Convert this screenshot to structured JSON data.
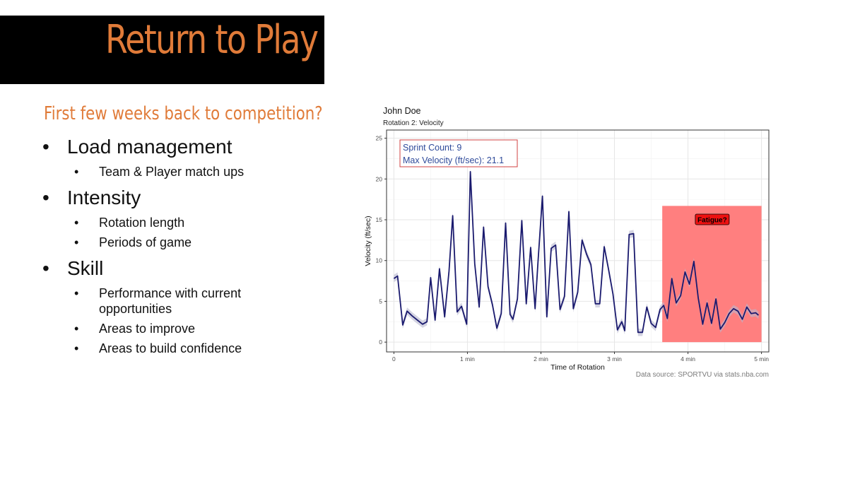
{
  "slide": {
    "title": "Return to Play",
    "title_color": "#e07b39",
    "subtitle": "First few weeks back to competition?",
    "bullets": [
      {
        "label": "Load management",
        "sub": [
          "Team & Player match ups"
        ]
      },
      {
        "label": "Intensity",
        "sub": [
          "Rotation length",
          "Periods of game"
        ]
      },
      {
        "label": "Skill",
        "sub": [
          "Performance with current opportunities",
          "Areas to improve",
          "Areas to build confidence"
        ]
      }
    ]
  },
  "chart_data": {
    "type": "line",
    "title": "John Doe",
    "subtitle": "Rotation 2: Velocity",
    "xlabel": "Time of Rotation",
    "ylabel": "Velocity (ft/sec)",
    "xlim": [
      -0.1,
      5.1
    ],
    "ylim": [
      -1.2,
      26
    ],
    "x_ticks": [
      {
        "value": 0,
        "label": "0"
      },
      {
        "value": 1,
        "label": "1 min"
      },
      {
        "value": 2,
        "label": "2 min"
      },
      {
        "value": 3,
        "label": "3 min"
      },
      {
        "value": 4,
        "label": "4 min"
      },
      {
        "value": 5,
        "label": "5 min"
      }
    ],
    "y_ticks": [
      0,
      5,
      10,
      15,
      20,
      25
    ],
    "grid": true,
    "line_color": "#1a1a6e",
    "ribbon_color": "#b8b8cf",
    "caption": "Data source: SPORTVU via stats.nba.com",
    "stats_box": {
      "lines": [
        "Sprint Count: 9",
        "Max Velocity (ft/sec): 21.1"
      ],
      "text_color": "#2e4a9a",
      "border_color": "#d04040"
    },
    "highlight": {
      "x0": 3.65,
      "x1": 5.0,
      "y0": 0,
      "y1": 16.7,
      "color": "#ff7f7f",
      "label": "Fatigue?",
      "label_x": 4.33,
      "label_y": 15.0,
      "label_fill": "#ee1111"
    },
    "series": [
      {
        "x": [
          0,
          0.05,
          0.12,
          0.18,
          0.25,
          0.32,
          0.39,
          0.45,
          0.5,
          0.56,
          0.62,
          0.69,
          0.75,
          0.8,
          0.86,
          0.92,
          0.99,
          1.04,
          1.1,
          1.16,
          1.22,
          1.28,
          1.34,
          1.4,
          1.46,
          1.52,
          1.58,
          1.62,
          1.68,
          1.74,
          1.8,
          1.86,
          1.92,
          1.96,
          2.02,
          2.08,
          2.14,
          2.2,
          2.26,
          2.32,
          2.38,
          2.44,
          2.5,
          2.56,
          2.62,
          2.68,
          2.74,
          2.8,
          2.86,
          2.92,
          2.98,
          3.04,
          3.1,
          3.14,
          3.2,
          3.26,
          3.32,
          3.38,
          3.44,
          3.5,
          3.56,
          3.62,
          3.67,
          3.72,
          3.78,
          3.84,
          3.9,
          3.96,
          4.02,
          4.08,
          4.14,
          4.2,
          4.26,
          4.32,
          4.38,
          4.44,
          4.5,
          4.56,
          4.62,
          4.68,
          4.74,
          4.8,
          4.86,
          4.92,
          4.96
        ],
        "y": [
          7.8,
          8.1,
          2.1,
          3.8,
          3.2,
          2.7,
          2.2,
          2.5,
          7.9,
          2.7,
          9.0,
          3.1,
          8.7,
          15.5,
          3.7,
          4.4,
          2.2,
          20.9,
          9.6,
          4.3,
          14.1,
          6.8,
          4.6,
          1.7,
          3.5,
          14.6,
          3.4,
          2.8,
          5.3,
          14.9,
          4.7,
          11.6,
          4.1,
          9.8,
          17.9,
          3.1,
          11.5,
          11.9,
          4.0,
          5.6,
          16.0,
          4.1,
          6.1,
          12.5,
          10.8,
          9.5,
          4.7,
          4.7,
          11.7,
          8.9,
          5.9,
          1.5,
          2.5,
          1.4,
          13.2,
          13.3,
          1.2,
          1.2,
          4.3,
          2.3,
          1.8,
          4.0,
          4.5,
          2.9,
          7.8,
          4.8,
          5.7,
          8.6,
          7.1,
          9.9,
          5.4,
          2.2,
          4.8,
          2.3,
          5.3,
          1.6,
          2.4,
          3.5,
          4.1,
          3.8,
          2.8,
          4.3,
          3.5,
          3.6,
          3.3
        ]
      }
    ]
  }
}
